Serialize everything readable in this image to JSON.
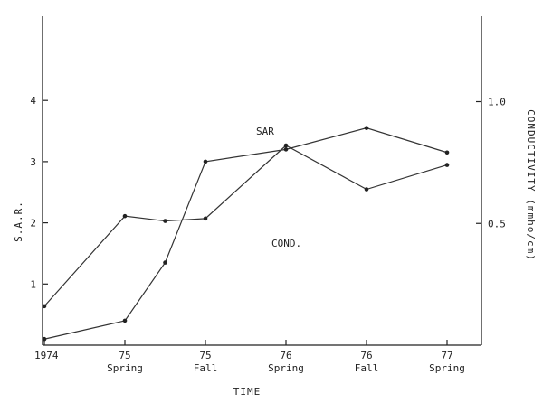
{
  "chart_data": {
    "type": "line",
    "title": "",
    "xlabel": "TIME",
    "ylabel_left": "S.A.R.",
    "ylabel_right": "CONDUCTIVITY (mmho/cm)",
    "x_tick_labels": [
      {
        "year": "1974",
        "season": ""
      },
      {
        "year": "75",
        "season": "Spring"
      },
      {
        "year": "75",
        "season": "Fall"
      },
      {
        "year": "76",
        "season": "Spring"
      },
      {
        "year": "76",
        "season": "Fall"
      },
      {
        "year": "77",
        "season": "Spring"
      }
    ],
    "left_axis": {
      "ylim": [
        0,
        5
      ],
      "ticks": [
        "1",
        "2",
        "3",
        "4"
      ]
    },
    "right_axis": {
      "ylim": [
        0,
        2
      ],
      "ticks": [
        "0.5",
        "1.0",
        "1.5"
      ]
    },
    "grid": false,
    "series": [
      {
        "name": "SAR",
        "axis": "left",
        "x": [
          0,
          1,
          1.5,
          2,
          3,
          4,
          5
        ],
        "y": [
          0.1,
          0.4,
          1.35,
          3.0,
          3.2,
          3.55,
          3.15
        ]
      },
      {
        "name": "COND.",
        "axis": "right",
        "x": [
          0,
          1,
          1.5,
          2,
          3,
          4,
          5
        ],
        "y": [
          0.16,
          0.53,
          0.51,
          0.52,
          0.82,
          0.64,
          0.74
        ]
      }
    ]
  }
}
